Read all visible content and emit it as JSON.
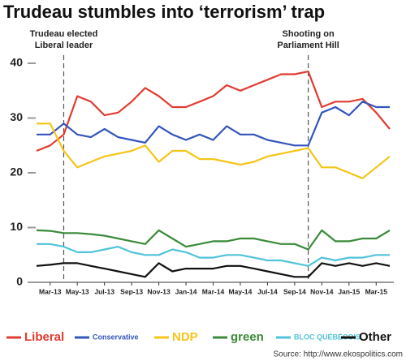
{
  "chart_data": {
    "type": "line",
    "title": "Trudeau stumbles into ‘terrorism’ trap",
    "source": "Source: http://www.ekospolitics.com",
    "x": [
      "2013-02",
      "2013-03",
      "2013-04",
      "2013-05",
      "2013-06",
      "2013-07",
      "2013-08",
      "2013-09",
      "2013-10",
      "2013-11",
      "2013-12",
      "2014-01",
      "2014-02",
      "2014-03",
      "2014-04",
      "2014-05",
      "2014-06",
      "2014-07",
      "2014-08",
      "2014-09",
      "2014-10",
      "2014-11",
      "2014-12",
      "2015-01",
      "2015-02",
      "2015-03",
      "2015-04"
    ],
    "xlim": [
      "2013-02",
      "2015-04"
    ],
    "xticks": [
      {
        "value": "2013-03",
        "label": "Mar-13"
      },
      {
        "value": "2013-05",
        "label": "May-13"
      },
      {
        "value": "2013-07",
        "label": "Jul-13"
      },
      {
        "value": "2013-09",
        "label": "Sep-13"
      },
      {
        "value": "2013-11",
        "label": "Nov-13"
      },
      {
        "value": "2014-01",
        "label": "Jan-14"
      },
      {
        "value": "2014-03",
        "label": "Mar-14"
      },
      {
        "value": "2014-05",
        "label": "May-14"
      },
      {
        "value": "2014-07",
        "label": "Jul-14"
      },
      {
        "value": "2014-09",
        "label": "Sep-14"
      },
      {
        "value": "2014-11",
        "label": "Nov-14"
      },
      {
        "value": "2015-01",
        "label": "Jan-15"
      },
      {
        "value": "2015-03",
        "label": "Mar-15"
      }
    ],
    "ylim": [
      0,
      40
    ],
    "yticks": [
      0,
      10,
      20,
      30,
      40
    ],
    "grid": false,
    "annotations": [
      {
        "x": "2013-04",
        "label": [
          "Trudeau elected",
          "Liberal leader"
        ]
      },
      {
        "x": "2014-10",
        "label": [
          "Shooting on",
          "Parliament Hill"
        ]
      }
    ],
    "series": [
      {
        "name": "Liberal",
        "color": "#e03c31",
        "values": [
          24,
          25,
          27,
          34,
          33,
          30.5,
          31,
          33,
          35.5,
          34,
          32,
          32,
          33,
          34,
          36,
          35,
          36,
          37,
          38,
          38,
          38.5,
          32,
          33,
          33,
          33.5,
          31,
          28
        ]
      },
      {
        "name": "Conservative",
        "color": "#3355bb",
        "values": [
          27,
          27,
          29,
          27,
          26.5,
          28,
          26.5,
          26,
          25.5,
          28.5,
          27,
          26,
          27,
          26,
          28.5,
          27,
          27,
          26,
          25.5,
          25,
          25,
          31,
          32,
          30.5,
          33,
          32,
          32
        ]
      },
      {
        "name": "NDP",
        "color": "#f5c518",
        "values": [
          29,
          29,
          24,
          21,
          22,
          23,
          23.5,
          24,
          25,
          22,
          24,
          24,
          22.5,
          22.5,
          22,
          21.5,
          22,
          23,
          23.5,
          24,
          24.5,
          21,
          21,
          20,
          19,
          21,
          23
        ]
      },
      {
        "name": "green",
        "color": "#3a8a3a",
        "values": [
          9.5,
          9.4,
          9,
          9,
          8.8,
          8.5,
          8,
          7.5,
          7,
          9.5,
          8,
          6.5,
          7,
          7.5,
          7.5,
          8,
          8,
          7.5,
          7,
          7,
          6,
          9.5,
          7.5,
          7.5,
          8,
          8,
          9.5
        ]
      },
      {
        "name": "BLOC QUÉBÉCOIS",
        "color": "#4fc3d9",
        "values": [
          7,
          7,
          6.5,
          5.5,
          5.5,
          6,
          6.5,
          5.5,
          5,
          5,
          6,
          5.5,
          4.5,
          4.5,
          5,
          5,
          4.5,
          4,
          4,
          3.5,
          3,
          4.5,
          4,
          4.5,
          4.5,
          5,
          5
        ]
      },
      {
        "name": "Other",
        "color": "#111111",
        "values": [
          3,
          3.2,
          3.5,
          3.5,
          3,
          2.5,
          2,
          1.5,
          1,
          3.5,
          2,
          2.5,
          2.5,
          2.5,
          3,
          3,
          2.5,
          2,
          1.5,
          1,
          1,
          3.5,
          3,
          3.5,
          3,
          3.5,
          3
        ]
      }
    ]
  }
}
